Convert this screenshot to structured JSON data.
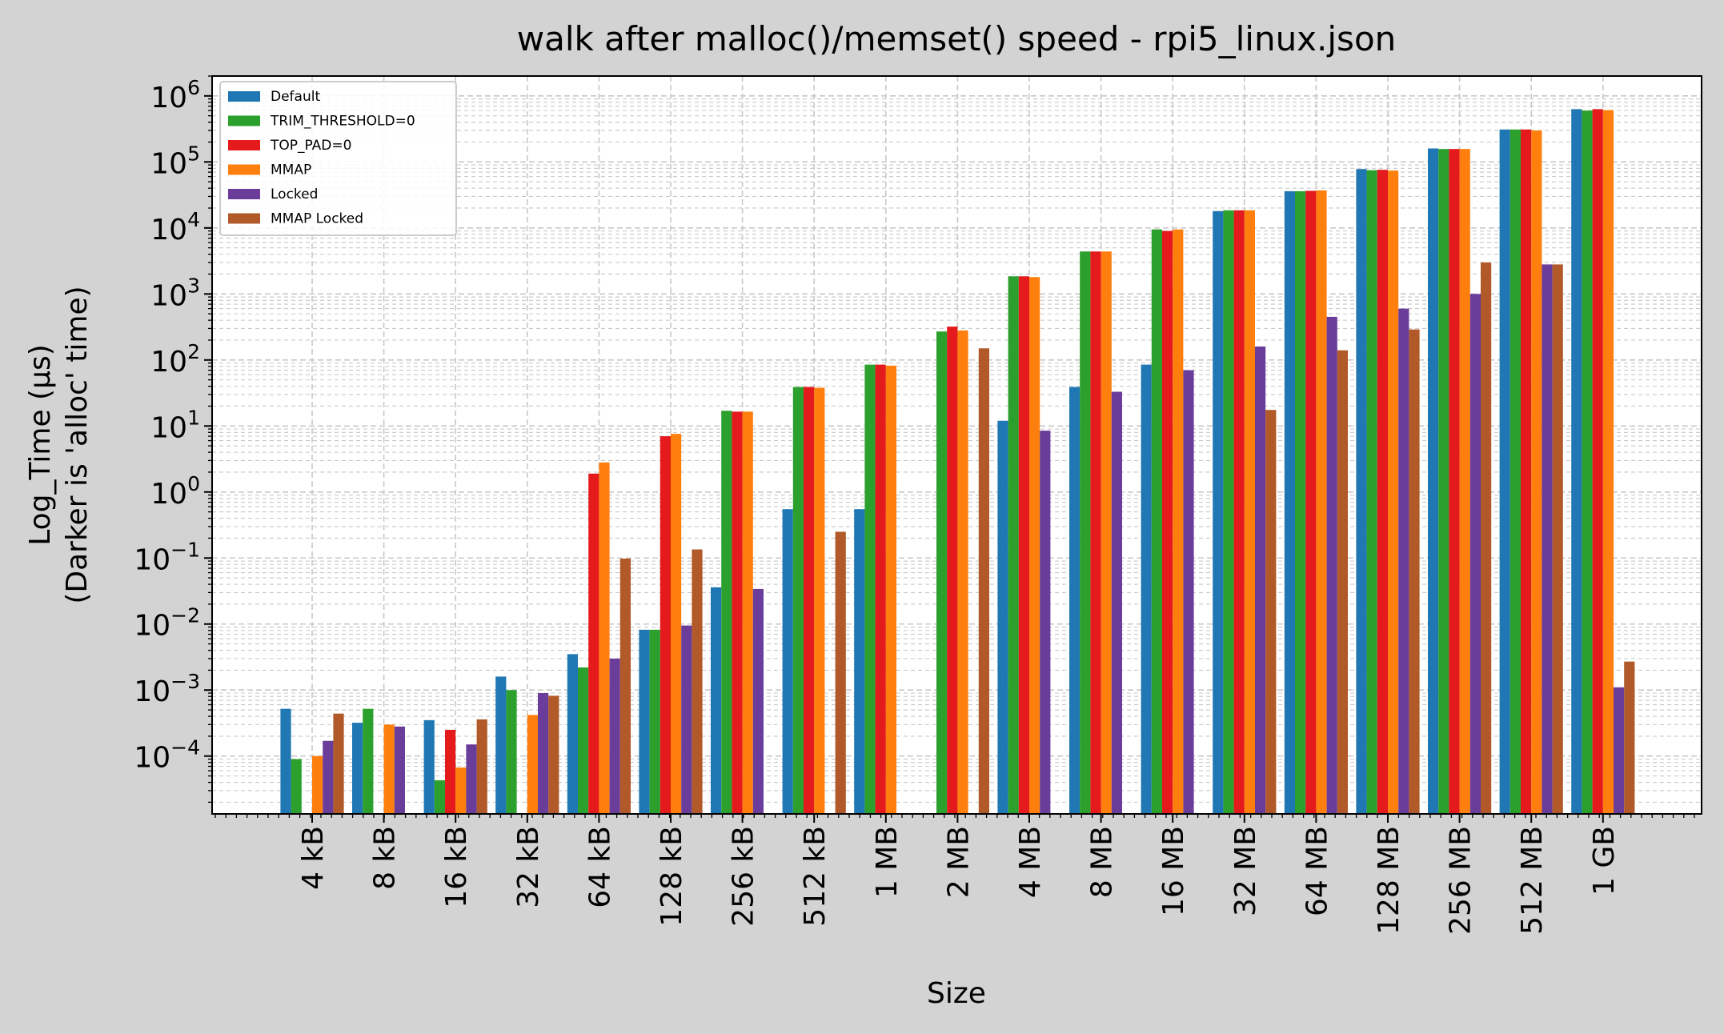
{
  "chart_data": {
    "type": "bar",
    "title": "walk after malloc()/memset() speed - rpi5_linux.json",
    "xlabel": "Size",
    "ylabel_line1": "Log_Time (µs)",
    "ylabel_line2": "(Darker is 'alloc' time)",
    "y_scale": "log",
    "ylim": [
      1.33e-05,
      2000000
    ],
    "grid": true,
    "legend_placement": "top-left",
    "categories": [
      "4 kB",
      "8 kB",
      "16 kB",
      "32 kB",
      "64 kB",
      "128 kB",
      "256 kB",
      "512 kB",
      "1 MB",
      "2 MB",
      "4 MB",
      "8 MB",
      "16 MB",
      "32 MB",
      "64 MB",
      "128 MB",
      "256 MB",
      "512 MB",
      "1 GB"
    ],
    "y_ticks": [
      {
        "value": 0.0001,
        "base": "10",
        "exp": "−4"
      },
      {
        "value": 0.001,
        "base": "10",
        "exp": "−3"
      },
      {
        "value": 0.01,
        "base": "10",
        "exp": "−2"
      },
      {
        "value": 0.1,
        "base": "10",
        "exp": "−1"
      },
      {
        "value": 1,
        "base": "10",
        "exp": "0"
      },
      {
        "value": 10,
        "base": "10",
        "exp": "1"
      },
      {
        "value": 100,
        "base": "10",
        "exp": "2"
      },
      {
        "value": 1000,
        "base": "10",
        "exp": "3"
      },
      {
        "value": 10000,
        "base": "10",
        "exp": "4"
      },
      {
        "value": 100000,
        "base": "10",
        "exp": "5"
      },
      {
        "value": 1000000,
        "base": "10",
        "exp": "6"
      }
    ],
    "series": [
      {
        "name": "Default",
        "color": "#1f77b4",
        "values": [
          0.00052,
          0.00032,
          0.00035,
          0.0016,
          0.0035,
          0.0082,
          0.036,
          0.55,
          0.55,
          null,
          12,
          39,
          85,
          18000,
          36000,
          78000,
          160000,
          310000,
          630000
        ]
      },
      {
        "name": "TRIM_THRESHOLD=0",
        "color": "#2ca02c",
        "values": [
          9e-05,
          0.00052,
          4.3e-05,
          0.001,
          0.0022,
          0.0082,
          17,
          39,
          85,
          270,
          1850,
          4400,
          9500,
          18500,
          36000,
          75000,
          157000,
          310000,
          600000
        ]
      },
      {
        "name": "TOP_PAD=0",
        "color": "#e41a1c",
        "values": [
          null,
          null,
          0.00025,
          null,
          1.9,
          7.0,
          16.5,
          39,
          85,
          320,
          1850,
          4400,
          9000,
          18500,
          36500,
          76000,
          157000,
          310000,
          630000
        ]
      },
      {
        "name": "MMAP",
        "color": "#ff7f0e",
        "values": [
          0.0001,
          0.0003,
          6.7e-05,
          0.00042,
          2.8,
          7.6,
          16.5,
          38,
          82,
          280,
          1800,
          4400,
          9500,
          18500,
          37000,
          74000,
          157000,
          300000,
          610000
        ]
      },
      {
        "name": "Locked",
        "color": "#6a3d9a",
        "values": [
          0.00017,
          0.00028,
          0.00015,
          0.0009,
          0.003,
          0.0095,
          0.034,
          null,
          null,
          null,
          8.5,
          33,
          70,
          160,
          450,
          600,
          1000,
          2800,
          0.0011
        ]
      },
      {
        "name": "MMAP Locked",
        "color": "#b15928",
        "values": [
          0.00044,
          null,
          0.00036,
          0.00082,
          0.098,
          0.135,
          null,
          0.25,
          null,
          150,
          null,
          null,
          null,
          17.5,
          140,
          290,
          3000,
          2800,
          0.0027
        ]
      }
    ]
  }
}
